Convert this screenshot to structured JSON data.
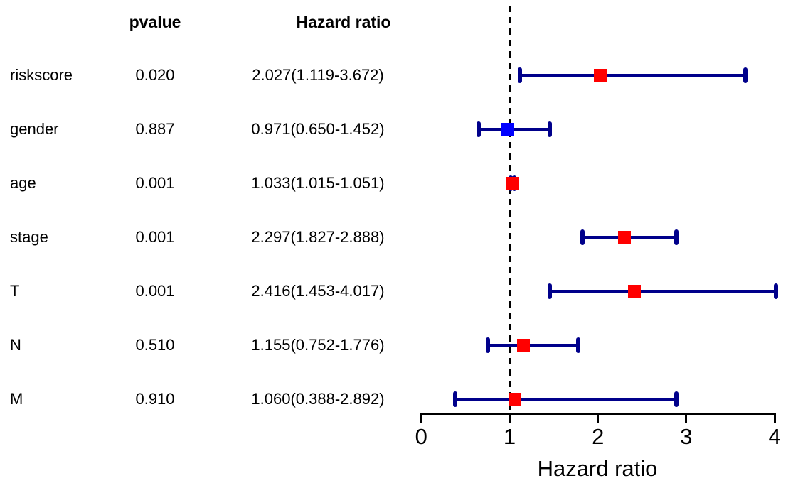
{
  "chart_data": {
    "type": "forest",
    "title": "",
    "xlabel": "Hazard ratio",
    "columns": {
      "pvalue": "pvalue",
      "hazard_ratio": "Hazard ratio"
    },
    "x_ticks": [
      "0",
      "1",
      "2",
      "3",
      "4"
    ],
    "xlim": [
      0,
      4
    ],
    "reference_line": 1,
    "grid": false,
    "legend": null,
    "rows": [
      {
        "label": "riskscore",
        "pvalue": "0.020",
        "hr_text": "2.027(1.119-3.672)",
        "hr": 2.027,
        "ci_low": 1.119,
        "ci_high": 3.672,
        "marker_color": "#FF0000"
      },
      {
        "label": "gender",
        "pvalue": "0.887",
        "hr_text": "0.971(0.650-1.452)",
        "hr": 0.971,
        "ci_low": 0.65,
        "ci_high": 1.452,
        "marker_color": "#0000FF"
      },
      {
        "label": "age",
        "pvalue": "0.001",
        "hr_text": "1.033(1.015-1.051)",
        "hr": 1.033,
        "ci_low": 1.015,
        "ci_high": 1.051,
        "marker_color": "#FF0000"
      },
      {
        "label": "stage",
        "pvalue": "0.001",
        "hr_text": "2.297(1.827-2.888)",
        "hr": 2.297,
        "ci_low": 1.827,
        "ci_high": 2.888,
        "marker_color": "#FF0000"
      },
      {
        "label": "T",
        "pvalue": "0.001",
        "hr_text": "2.416(1.453-4.017)",
        "hr": 2.416,
        "ci_low": 1.453,
        "ci_high": 4.017,
        "marker_color": "#FF0000"
      },
      {
        "label": "N",
        "pvalue": "0.510",
        "hr_text": "1.155(0.752-1.776)",
        "hr": 1.155,
        "ci_low": 0.752,
        "ci_high": 1.776,
        "marker_color": "#FF0000"
      },
      {
        "label": "M",
        "pvalue": "0.910",
        "hr_text": "1.060(0.388-2.892)",
        "hr": 1.06,
        "ci_low": 0.388,
        "ci_high": 2.892,
        "marker_color": "#FF0000"
      }
    ],
    "colors": {
      "ci_bar": "#00008B",
      "marker_hr_gt_1": "#FF0000",
      "marker_hr_lt_1": "#0000FF",
      "reference_line": "#000000",
      "axis": "#000000",
      "text": "#000000",
      "background": "#FFFFFF"
    }
  }
}
